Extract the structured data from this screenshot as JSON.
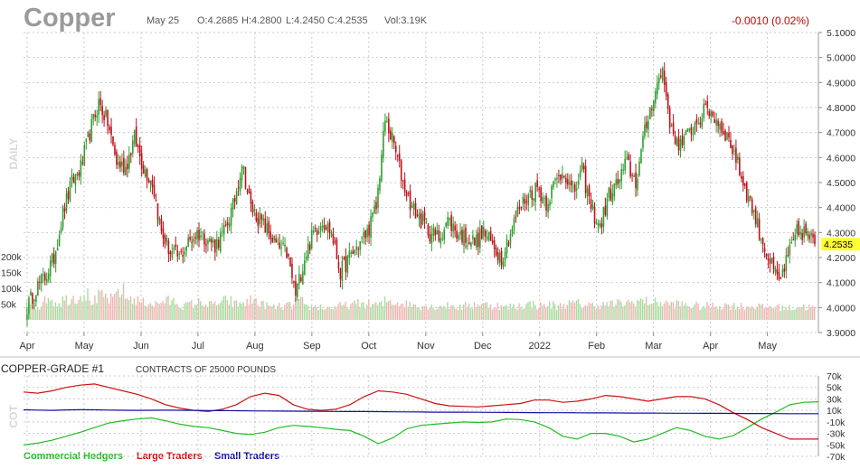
{
  "header": {
    "symbol": "Copper",
    "date": "May 25",
    "open": "O:4.2685",
    "high": "H:4.2800",
    "low": "L:4.2450",
    "close": "C:4.2535",
    "volume": "Vol:3.19K",
    "change": "-0.0010 (0.02%)"
  },
  "colors": {
    "up": "#2e9e2e",
    "down": "#c0101a",
    "vol_up": "#a8dca0",
    "vol_down": "#f4b4b4",
    "commercial": "#22bb22",
    "large": "#cc1111",
    "small": "#1111aa",
    "last_price_bg": "#ffff33",
    "grid": "#c9c9c9"
  },
  "chart_data": [
    {
      "type": "candlestick",
      "side_label": "DAILY",
      "y_axis_ticks": [
        "5.1000",
        "5.0000",
        "4.9000",
        "4.8000",
        "4.7000",
        "4.6000",
        "4.5000",
        "4.4000",
        "4.3000",
        "4.2000",
        "4.1000",
        "4.0000",
        "3.9000"
      ],
      "ylim": [
        3.9,
        5.1
      ],
      "x_axis_labels": [
        "Apr",
        "May",
        "Jun",
        "Jul",
        "Aug",
        "Sep",
        "Oct",
        "Nov",
        "Dec",
        "2022",
        "Feb",
        "Mar",
        "Apr",
        "May"
      ],
      "last_price": "4.2535",
      "volume_axis_ticks": [
        "200k",
        "150k",
        "100k",
        "50k"
      ],
      "volume_range": [
        0,
        200000
      ],
      "closes_weekly": [
        4.0,
        4.08,
        4.12,
        4.2,
        4.38,
        4.5,
        4.56,
        4.7,
        4.82,
        4.74,
        4.58,
        4.56,
        4.68,
        4.56,
        4.5,
        4.3,
        4.22,
        4.2,
        4.26,
        4.3,
        4.28,
        4.25,
        4.3,
        4.4,
        4.58,
        4.4,
        4.35,
        4.3,
        4.24,
        4.22,
        4.05,
        4.2,
        4.3,
        4.35,
        4.3,
        4.14,
        4.2,
        4.25,
        4.3,
        4.4,
        4.75,
        4.65,
        4.5,
        4.4,
        4.35,
        4.3,
        4.28,
        4.35,
        4.3,
        4.28,
        4.26,
        4.3,
        4.25,
        4.2,
        4.3,
        4.4,
        4.45,
        4.48,
        4.42,
        4.5,
        4.55,
        4.45,
        4.55,
        4.4,
        4.32,
        4.45,
        4.5,
        4.58,
        4.5,
        4.7,
        4.85,
        4.95,
        4.7,
        4.65,
        4.7,
        4.75,
        4.8,
        4.75,
        4.7,
        4.62,
        4.5,
        4.4,
        4.28,
        4.18,
        4.1,
        4.2,
        4.3,
        4.3,
        4.2535
      ],
      "volumes_weekly": [
        60000,
        45000,
        70000,
        55000,
        65000,
        70000,
        80000,
        60000,
        75000,
        65000,
        90000,
        70000,
        60000,
        55000,
        50000,
        60000,
        58000,
        45000,
        50000,
        55000,
        48000,
        52000,
        60000,
        50000,
        55000,
        62000,
        48000,
        40000,
        42000,
        45000,
        58000,
        40000,
        42000,
        38000,
        40000,
        45000,
        48000,
        52000,
        50000,
        48000,
        60000,
        55000,
        50000,
        48000,
        45000,
        42000,
        45000,
        44000,
        40000,
        45000,
        50000,
        48000,
        45000,
        40000,
        42000,
        46000,
        50000,
        45000,
        48000,
        44000,
        50000,
        52000,
        48000,
        46000,
        48000,
        50000,
        52000,
        55000,
        60000,
        58000,
        55000,
        52000,
        50000,
        48000,
        45000,
        42000,
        44000,
        45000,
        46000,
        44000,
        42000,
        44000,
        40000,
        42000,
        40000,
        38000,
        42000,
        40000,
        38000
      ]
    },
    {
      "type": "line",
      "title": "COPPER-GRADE #1",
      "subtitle": "CONTRACTS OF 25000 POUNDS",
      "side_label": "COT",
      "y_axis_ticks": [
        "70k",
        "50k",
        "30k",
        "10k",
        "-10k",
        "-30k",
        "-50k",
        "-70k"
      ],
      "ylim": [
        -70000,
        70000
      ],
      "series": [
        {
          "name": "Commercial Hedgers",
          "values": [
            -50000,
            -47000,
            -42000,
            -35000,
            -28000,
            -20000,
            -12000,
            -8000,
            -5000,
            -3000,
            -8000,
            -14000,
            -18000,
            -20000,
            -25000,
            -30000,
            -32000,
            -28000,
            -20000,
            -16000,
            -18000,
            -20000,
            -23000,
            -25000,
            -35000,
            -48000,
            -38000,
            -22000,
            -16000,
            -14000,
            -12000,
            -10000,
            -11000,
            -10000,
            -5000,
            -6000,
            -10000,
            -20000,
            -35000,
            -40000,
            -30000,
            -30000,
            -35000,
            -45000,
            -40000,
            -30000,
            -20000,
            -25000,
            -35000,
            -40000,
            -34000,
            -20000,
            -5000,
            7000,
            20000,
            24000,
            25000
          ]
        },
        {
          "name": "Large Traders",
          "values": [
            42000,
            40000,
            44000,
            50000,
            54000,
            56000,
            50000,
            44000,
            38000,
            30000,
            20000,
            14000,
            10000,
            8000,
            12000,
            20000,
            34000,
            40000,
            36000,
            20000,
            12000,
            10000,
            12000,
            20000,
            34000,
            44000,
            42000,
            38000,
            30000,
            22000,
            18000,
            17000,
            16000,
            18000,
            20000,
            22000,
            28000,
            28000,
            24000,
            26000,
            30000,
            36000,
            34000,
            30000,
            26000,
            30000,
            34000,
            34000,
            30000,
            20000,
            6000,
            -6000,
            -20000,
            -30000,
            -40000,
            -40000,
            -40000
          ]
        },
        {
          "name": "Small Traders",
          "values": [
            11000,
            10500,
            10000,
            10800,
            11200,
            11000,
            10500,
            10300,
            10000,
            10200,
            10400,
            10200,
            10000,
            9800,
            9600,
            9400,
            9200,
            9000,
            8800,
            8600,
            8500,
            8300,
            8200,
            8100,
            8000,
            7800,
            7600,
            7400,
            7200,
            7000,
            6900,
            7000,
            6800,
            6600,
            6500,
            6300,
            6100,
            6000,
            5900,
            5800,
            5700,
            5600,
            5500,
            5400,
            5300,
            5200,
            5100,
            5000,
            4900,
            4800,
            4700,
            4600,
            4500,
            4400,
            4300,
            4200,
            4200
          ]
        }
      ]
    }
  ]
}
